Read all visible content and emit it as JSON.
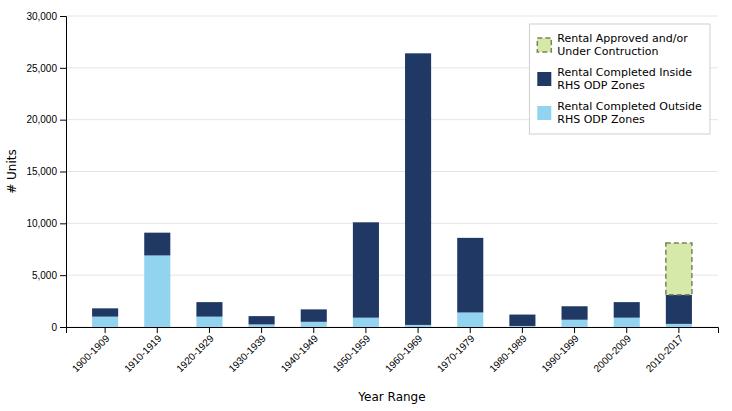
{
  "chart_data": {
    "type": "bar",
    "stacked": true,
    "categories": [
      "1900-1909",
      "1910-1919",
      "1920-1929",
      "1930-1939",
      "1940-1949",
      "1950-1959",
      "1960-1969",
      "1970-1979",
      "1980-1989",
      "1990-1999",
      "2000-2009",
      "2010-2017"
    ],
    "series": [
      {
        "name": "Rental Completed Outside\nRHS ODP Zones",
        "color": "#92d4f0",
        "values": [
          1000,
          6900,
          1000,
          250,
          500,
          900,
          200,
          1400,
          100,
          700,
          900,
          300
        ]
      },
      {
        "name": "Rental Completed Inside\nRHS ODP Zones",
        "color": "#1f3864",
        "values": [
          800,
          2200,
          1400,
          800,
          1200,
          9200,
          26200,
          7200,
          1100,
          1300,
          1500,
          2800
        ]
      },
      {
        "name": "Rental Approved and/or\nUnder Contruction",
        "color": "#d6e9a8",
        "line_style": "dashed",
        "values": [
          0,
          0,
          0,
          0,
          0,
          0,
          0,
          0,
          0,
          0,
          0,
          5000
        ]
      }
    ],
    "xlabel": "Year Range",
    "ylabel": "# Units",
    "ylim": [
      0,
      30000
    ],
    "yticks": [
      0,
      {
        "value": 5000,
        "label": "5,000"
      },
      {
        "value": 10000,
        "label": "10,000"
      },
      {
        "value": 15000,
        "label": "15,000"
      },
      {
        "value": 20000,
        "label": "20,000"
      },
      {
        "value": 25000,
        "label": "25,000"
      },
      {
        "value": 30000,
        "label": "30,000"
      }
    ],
    "grid": true,
    "legend": "upper right"
  }
}
